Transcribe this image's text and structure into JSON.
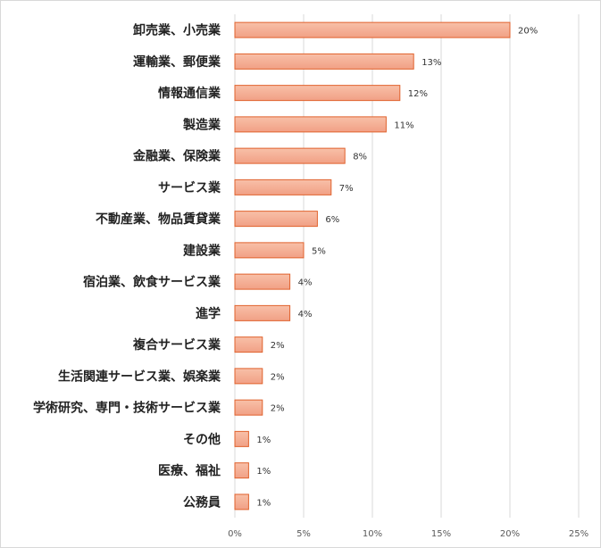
{
  "chart_data": {
    "type": "bar",
    "orientation": "horizontal",
    "categories": [
      "卸売業、小売業",
      "運輸業、郵便業",
      "情報通信業",
      "製造業",
      "金融業、保険業",
      "サービス業",
      "不動産業、物品賃貸業",
      "建設業",
      "宿泊業、飲食サービス業",
      "進学",
      "複合サービス業",
      "生活関連サービス業、娯楽業",
      "学術研究、専門・技術サービス業",
      "その他",
      "医療、福祉",
      "公務員"
    ],
    "values": [
      20,
      13,
      12,
      11,
      8,
      7,
      6,
      5,
      4,
      4,
      2,
      2,
      2,
      1,
      1,
      1
    ],
    "value_labels": [
      "20%",
      "13%",
      "12%",
      "11%",
      "8%",
      "7%",
      "6%",
      "5%",
      "4%",
      "4%",
      "2%",
      "2%",
      "2%",
      "1%",
      "1%",
      "1%"
    ],
    "xlim": [
      0,
      25
    ],
    "xticks": [
      "0%",
      "5%",
      "10%",
      "15%",
      "20%",
      "25%"
    ],
    "grid": true,
    "colors": {
      "bar_fill_top": "#f8c0a8",
      "bar_fill_bottom": "#f1a085",
      "bar_stroke": "#e0622d",
      "grid": "#d9d9d9"
    }
  }
}
